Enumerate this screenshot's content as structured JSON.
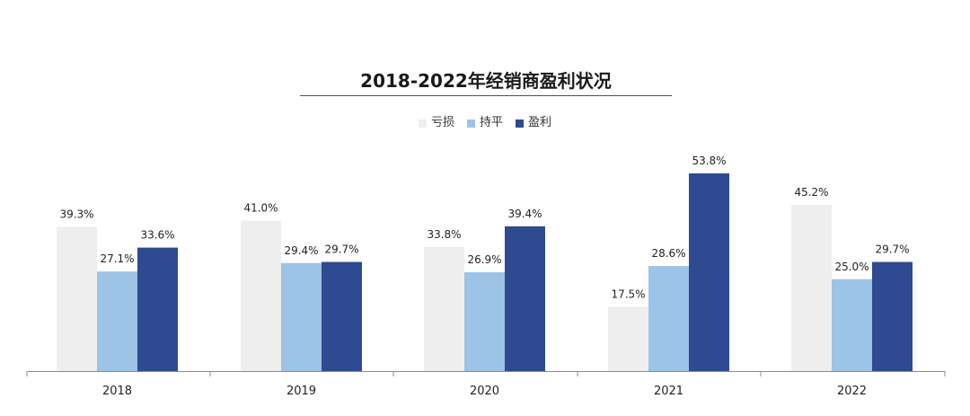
{
  "chart_data": {
    "type": "bar",
    "title": "2018-2022年经销商盈利状况",
    "categories": [
      "2018",
      "2019",
      "2020",
      "2021",
      "2022"
    ],
    "series": [
      {
        "name": "亏损",
        "color": "#eeeeee",
        "values": [
          39.3,
          41.0,
          33.8,
          17.5,
          45.2
        ],
        "labels": [
          "39.3%",
          "41.0%",
          "33.8%",
          "17.5%",
          "45.2%"
        ]
      },
      {
        "name": "持平",
        "color": "#9dc3e6",
        "values": [
          27.1,
          29.4,
          26.9,
          28.6,
          25.0
        ],
        "labels": [
          "27.1%",
          "29.4%",
          "26.9%",
          "28.6%",
          "25.0%"
        ]
      },
      {
        "name": "盈利",
        "color": "#2e4a91",
        "values": [
          33.6,
          29.7,
          39.4,
          53.8,
          29.7
        ],
        "labels": [
          "33.6%",
          "29.7%",
          "39.4%",
          "53.8%",
          "29.7%"
        ]
      }
    ],
    "ylim": [
      0,
      60
    ],
    "grid": false,
    "legend_position": "top-center",
    "xlabel": "",
    "ylabel": ""
  }
}
